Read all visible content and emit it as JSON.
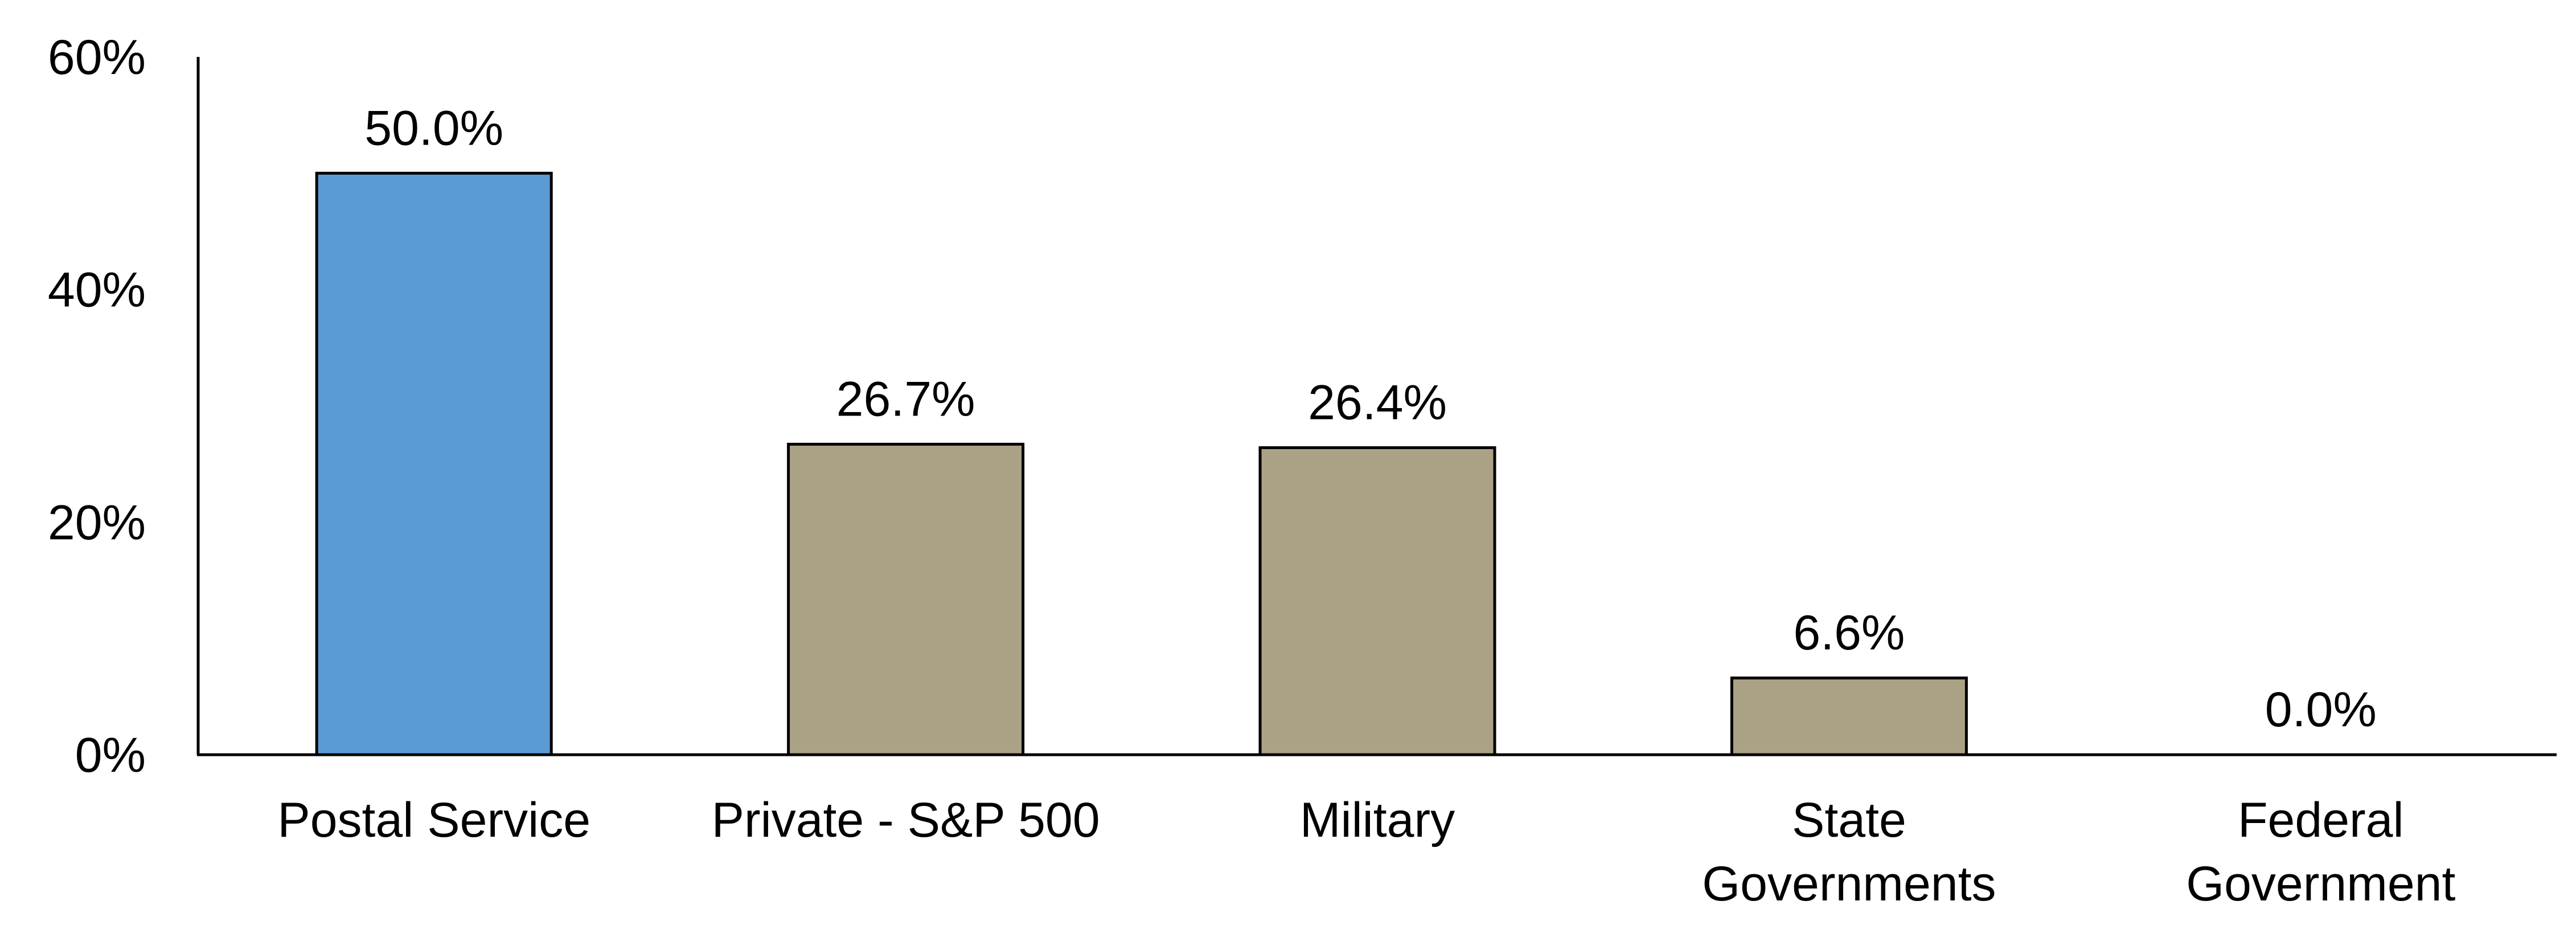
{
  "chart_data": {
    "type": "bar",
    "title": "",
    "xlabel": "",
    "ylabel": "",
    "categories": [
      [
        "Postal Service"
      ],
      [
        "Private - S&P 500"
      ],
      [
        "Military"
      ],
      [
        "State",
        "Governments"
      ],
      [
        "Federal",
        "Government"
      ]
    ],
    "values": [
      50.0,
      26.7,
      26.4,
      6.6,
      0.0
    ],
    "data_labels": [
      "50.0%",
      "26.7%",
      "26.4%",
      "6.6%",
      "0.0%"
    ],
    "ylim": [
      0,
      60
    ],
    "yticks": [
      0,
      20,
      40,
      60
    ],
    "ytick_labels": [
      "0%",
      "20%",
      "40%",
      "60%"
    ],
    "grid": false,
    "legend": "none",
    "bar_colors": [
      "#5b9bd5",
      "#aba185",
      "#aba185",
      "#aba185",
      "#aba185"
    ],
    "bar_outline_color": "#000000",
    "axis_color": "#000000"
  }
}
